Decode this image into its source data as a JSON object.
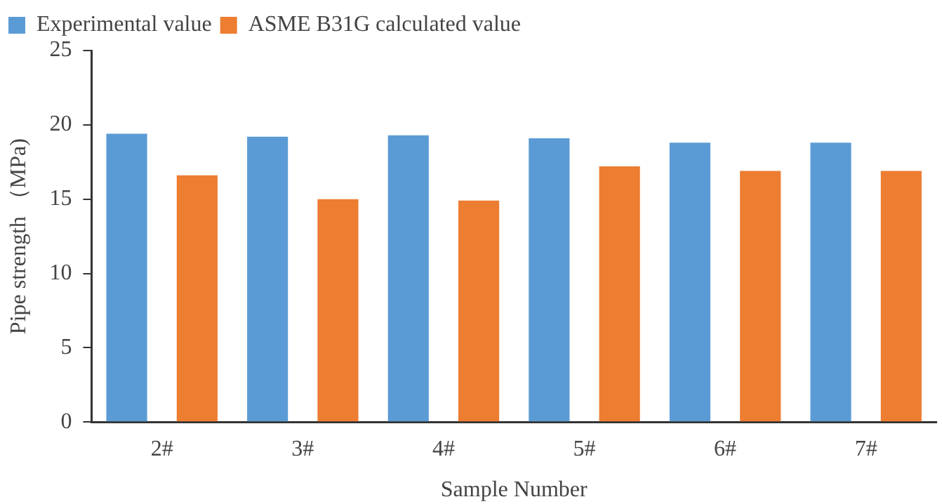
{
  "chart_data": {
    "type": "bar",
    "xlabel": "Sample Number",
    "ylabel": "Pipe strength （MPa)",
    "categories": [
      "2#",
      "3#",
      "4#",
      "5#",
      "6#",
      "7#"
    ],
    "series": [
      {
        "name": "Experimental value",
        "color": "#5b9bd5",
        "values": [
          19.4,
          19.2,
          19.3,
          19.1,
          18.8,
          18.8
        ]
      },
      {
        "name": "ASME B31G calculated value",
        "color": "#ed7d31",
        "values": [
          16.6,
          15.0,
          14.9,
          17.2,
          16.9,
          16.9
        ]
      }
    ],
    "ylim": [
      0,
      25
    ],
    "yticks": [
      0,
      5,
      10,
      15,
      20,
      25
    ],
    "grid": false,
    "legend": "top left"
  }
}
